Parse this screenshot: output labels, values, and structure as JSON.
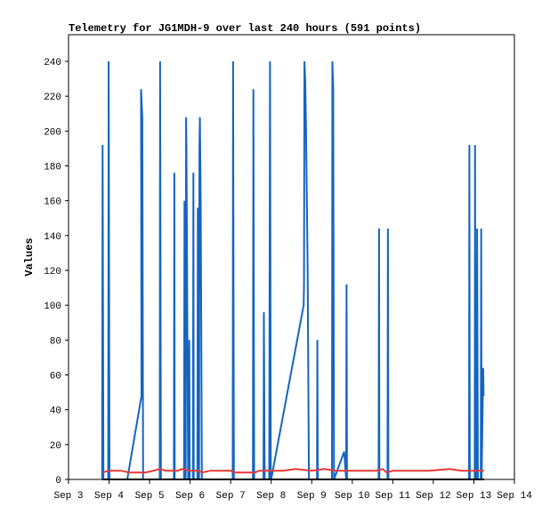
{
  "chart_data": {
    "type": "line",
    "title": "Telemetry for JG1MDH-9 over last 240 hours (591 points)",
    "xlabel": "",
    "ylabel": "Values",
    "x_ticks": [
      "Sep 3",
      "Sep 4",
      "Sep 5",
      "Sep 6",
      "Sep 7",
      "Sep 8",
      "Sep 9",
      "Sep 10",
      "Sep 11",
      "Sep 12",
      "Sep 13",
      "Sep 14"
    ],
    "xlim": [
      3.0,
      14.0
    ],
    "ylim": [
      0,
      255
    ],
    "y_ticks": [
      0,
      20,
      40,
      60,
      80,
      100,
      120,
      140,
      160,
      180,
      200,
      220,
      240
    ],
    "grid": false,
    "series": [
      {
        "color": "#1565c0",
        "points": [
          [
            3.83,
            0
          ],
          [
            3.84,
            192
          ],
          [
            3.86,
            0
          ],
          [
            3.98,
            0
          ],
          [
            3.99,
            240
          ],
          [
            4.01,
            0
          ],
          [
            4.45,
            0
          ],
          [
            4.8,
            48
          ],
          [
            4.79,
            224
          ],
          [
            4.82,
            208
          ],
          [
            4.84,
            0
          ],
          [
            5.25,
            0
          ],
          [
            5.26,
            240
          ],
          [
            5.28,
            0
          ],
          [
            5.6,
            0
          ],
          [
            5.61,
            176
          ],
          [
            5.62,
            0
          ],
          [
            5.85,
            0
          ],
          [
            5.86,
            160
          ],
          [
            5.87,
            0
          ],
          [
            5.89,
            0
          ],
          [
            5.9,
            208
          ],
          [
            5.91,
            188
          ],
          [
            5.92,
            144
          ],
          [
            5.93,
            100
          ],
          [
            5.95,
            0
          ],
          [
            5.97,
            0
          ],
          [
            5.98,
            80
          ],
          [
            5.99,
            0
          ],
          [
            6.07,
            0
          ],
          [
            6.08,
            176
          ],
          [
            6.09,
            0
          ],
          [
            6.18,
            0
          ],
          [
            6.19,
            156
          ],
          [
            6.2,
            0
          ],
          [
            6.22,
            0
          ],
          [
            6.23,
            190
          ],
          [
            6.24,
            208
          ],
          [
            6.26,
            160
          ],
          [
            6.28,
            56
          ],
          [
            6.29,
            0
          ],
          [
            7.05,
            0
          ],
          [
            7.06,
            240
          ],
          [
            7.08,
            0
          ],
          [
            7.55,
            0
          ],
          [
            7.56,
            224
          ],
          [
            7.58,
            0
          ],
          [
            7.81,
            0
          ],
          [
            7.82,
            96
          ],
          [
            7.84,
            0
          ],
          [
            7.95,
            0
          ],
          [
            7.97,
            240
          ],
          [
            7.99,
            0
          ],
          [
            8.0,
            0
          ],
          [
            8.8,
            100
          ],
          [
            8.81,
            112
          ],
          [
            8.82,
            240
          ],
          [
            8.84,
            228
          ],
          [
            8.86,
            200
          ],
          [
            8.88,
            160
          ],
          [
            8.9,
            120
          ],
          [
            8.93,
            0
          ],
          [
            9.13,
            0
          ],
          [
            9.14,
            80
          ],
          [
            9.15,
            0
          ],
          [
            9.5,
            0
          ],
          [
            9.51,
            240
          ],
          [
            9.53,
            224
          ],
          [
            9.55,
            0
          ],
          [
            9.8,
            16
          ],
          [
            9.85,
            0
          ],
          [
            9.86,
            112
          ],
          [
            9.87,
            0
          ],
          [
            10.65,
            0
          ],
          [
            10.66,
            144
          ],
          [
            10.67,
            0
          ],
          [
            10.87,
            0
          ],
          [
            10.88,
            144
          ],
          [
            10.89,
            0
          ],
          [
            12.88,
            0
          ],
          [
            12.89,
            192
          ],
          [
            12.9,
            0
          ],
          [
            13.02,
            0
          ],
          [
            13.03,
            192
          ],
          [
            13.04,
            0
          ],
          [
            13.07,
            0
          ],
          [
            13.08,
            144
          ],
          [
            13.1,
            0
          ],
          [
            13.17,
            0
          ],
          [
            13.18,
            144
          ],
          [
            13.19,
            0
          ],
          [
            13.22,
            48
          ],
          [
            13.23,
            64
          ],
          [
            13.24,
            48
          ]
        ]
      },
      {
        "color": "#e53935",
        "points": [
          [
            3.84,
            4
          ],
          [
            4.0,
            5
          ],
          [
            4.3,
            5
          ],
          [
            4.5,
            4
          ],
          [
            4.9,
            4
          ],
          [
            5.1,
            5
          ],
          [
            5.25,
            6
          ],
          [
            5.4,
            5
          ],
          [
            5.7,
            5
          ],
          [
            5.8,
            6
          ],
          [
            6.0,
            5
          ],
          [
            6.2,
            5
          ],
          [
            6.3,
            4
          ],
          [
            6.5,
            5
          ],
          [
            7.0,
            5
          ],
          [
            7.1,
            4
          ],
          [
            7.6,
            4
          ],
          [
            7.7,
            5
          ],
          [
            8.0,
            5
          ],
          [
            8.3,
            5
          ],
          [
            8.6,
            6
          ],
          [
            9.0,
            5
          ],
          [
            9.3,
            6
          ],
          [
            9.6,
            5
          ],
          [
            10.0,
            5
          ],
          [
            10.6,
            5
          ],
          [
            10.75,
            6
          ],
          [
            10.85,
            4
          ],
          [
            11.0,
            5
          ],
          [
            11.3,
            5
          ],
          [
            11.9,
            5
          ],
          [
            12.4,
            6
          ],
          [
            12.7,
            5
          ],
          [
            13.25,
            5
          ]
        ]
      },
      {
        "color": "#000000",
        "points": [
          [
            3.84,
            0
          ],
          [
            13.25,
            0
          ]
        ]
      }
    ]
  }
}
